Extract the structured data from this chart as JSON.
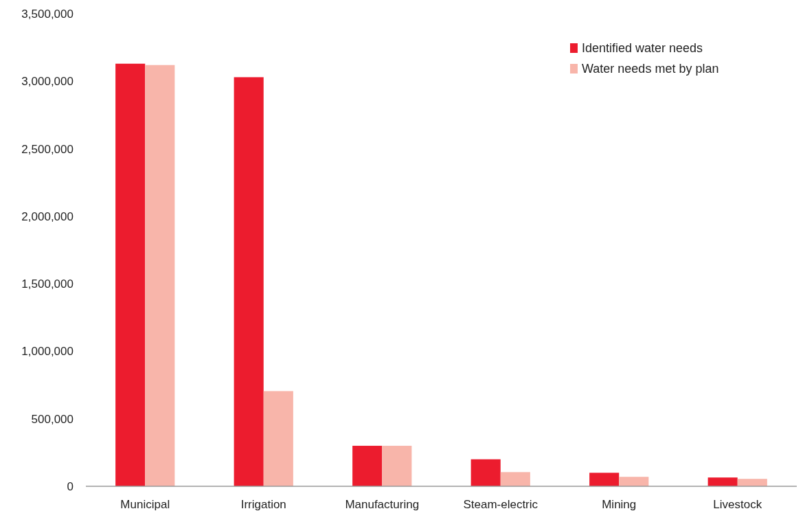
{
  "chart_data": {
    "type": "bar",
    "categories": [
      "Municipal",
      "Irrigation",
      "Manufacturing",
      "Steam-electric",
      "Mining",
      "Livestock"
    ],
    "series": [
      {
        "name": "Identified water needs",
        "color": "#ec1c2e",
        "values": [
          3130000,
          3030000,
          300000,
          200000,
          100000,
          65000
        ]
      },
      {
        "name": "Water needs met by plan",
        "color": "#f8b5aa",
        "values": [
          3120000,
          705000,
          300000,
          105000,
          70000,
          55000
        ]
      }
    ],
    "ylim": [
      0,
      3500000
    ],
    "yticks": [
      {
        "value": 0,
        "label": "0"
      },
      {
        "value": 500000,
        "label": "500,000"
      },
      {
        "value": 1000000,
        "label": "1,000,000"
      },
      {
        "value": 1500000,
        "label": "1,500,000"
      },
      {
        "value": 2000000,
        "label": "2,000,000"
      },
      {
        "value": 2500000,
        "label": "2,500,000"
      },
      {
        "value": 3000000,
        "label": "3,000,000"
      },
      {
        "value": 3500000,
        "label": "3,500,000"
      }
    ],
    "legend": "top right"
  }
}
